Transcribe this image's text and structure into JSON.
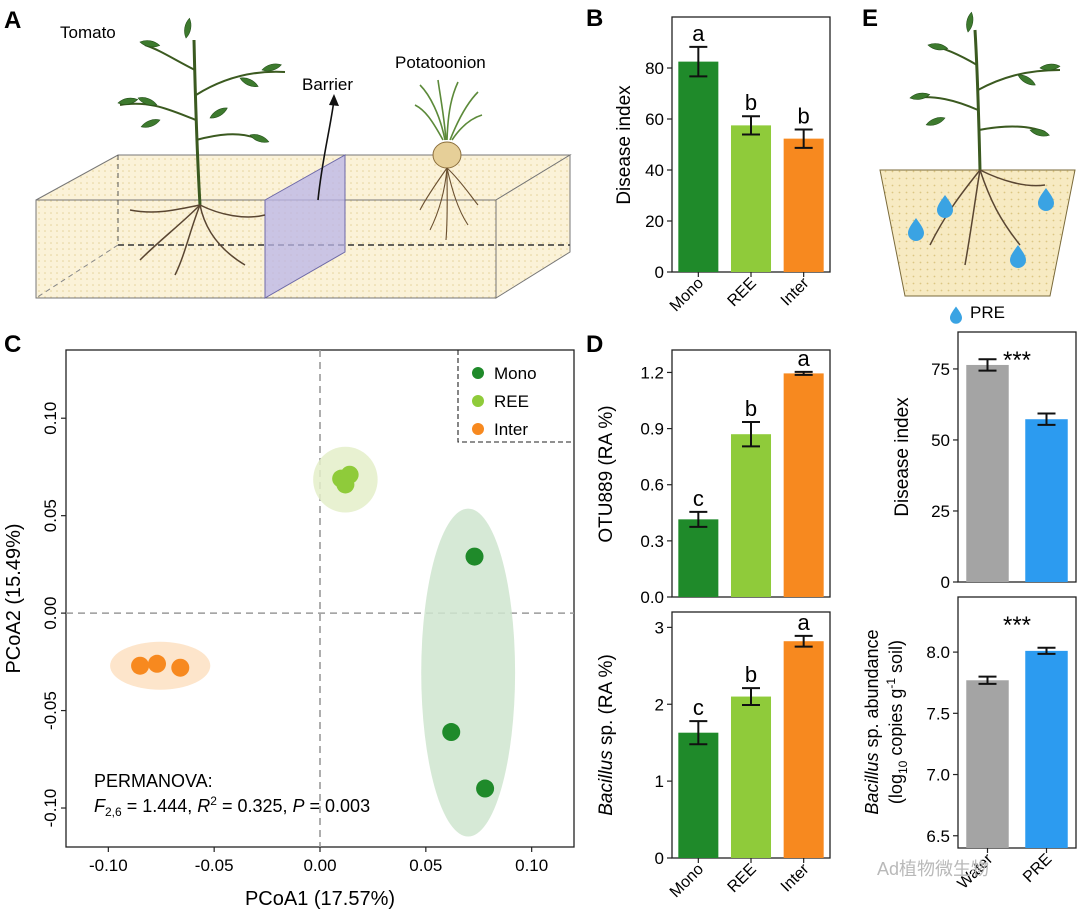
{
  "panels": {
    "A": {
      "letter": "A",
      "label_tomato": "Tomato",
      "label_barrier": "Barrier",
      "label_potatoonion": "Potatoonion"
    },
    "E": {
      "letter": "E",
      "legend_label": "PRE",
      "drop_color": "#3aa3e3"
    }
  },
  "colors": {
    "mono": "#1f8a2a",
    "ree": "#8fcb3a",
    "inter": "#f7891f",
    "water": "#a4a4a4",
    "pre": "#2c9bf0"
  },
  "watermark": "Ad植物微生物",
  "chart_data": [
    {
      "id": "B",
      "letter": "B",
      "type": "bar",
      "ylabel": "Disease index",
      "categories": [
        "Mono",
        "REE",
        "Inter"
      ],
      "values": [
        82.5,
        57.5,
        52.3
      ],
      "errors": [
        5.8,
        3.6,
        3.6
      ],
      "letters": [
        "a",
        "b",
        "b"
      ],
      "ylim": [
        0,
        100
      ],
      "yticks": [
        "0",
        "20",
        "40",
        "60",
        "80"
      ]
    },
    {
      "id": "C",
      "letter": "C",
      "type": "scatter",
      "xlabel": "PCoA1 (17.57%)",
      "ylabel": "PCoA2 (15.49%)",
      "xlim": [
        -0.12,
        0.12
      ],
      "ylim": [
        -0.12,
        0.135
      ],
      "xticks": [
        "-0.10",
        "-0.05",
        "0.00",
        "0.05",
        "0.10"
      ],
      "yticks": [
        "-0.10",
        "-0.05",
        "0.00",
        "0.05",
        "0.10"
      ],
      "legend": [
        "Mono",
        "REE",
        "Inter"
      ],
      "series": [
        {
          "name": "Mono",
          "x": [
            0.073,
            0.062,
            0.078
          ],
          "y": [
            0.029,
            -0.061,
            -0.09
          ]
        },
        {
          "name": "REE",
          "x": [
            0.01,
            0.014,
            0.012
          ],
          "y": [
            0.069,
            0.071,
            0.066
          ]
        },
        {
          "name": "Inter",
          "x": [
            -0.085,
            -0.077,
            -0.066
          ],
          "y": [
            -0.027,
            -0.026,
            -0.028
          ]
        }
      ],
      "stats_title": "PERMANOVA:",
      "stats_F_sym": "F",
      "stats_F_sub": "2,6",
      "stats_F_val": " = 1.444, ",
      "stats_R_sym": "R",
      "stats_R_sup": "2",
      "stats_R_val": " = 0.325, ",
      "stats_P_sym": "P",
      "stats_P_val": " = 0.003"
    },
    {
      "id": "D_top",
      "letter": "D",
      "type": "bar",
      "ylabel": "OTU889 (RA %)",
      "categories": [
        "Mono",
        "REE",
        "Inter"
      ],
      "values": [
        0.415,
        0.87,
        1.195
      ],
      "errors": [
        0.04,
        0.065,
        0.008
      ],
      "letters": [
        "c",
        "b",
        "a"
      ],
      "ylim": [
        0,
        1.32
      ],
      "yticks": [
        "0.0",
        "0.3",
        "0.6",
        "0.9",
        "1.2"
      ]
    },
    {
      "id": "D_bottom",
      "type": "bar",
      "ylabel_italic": "Bacillus",
      "ylabel_rest": " sp. (RA %)",
      "categories": [
        "Mono",
        "REE",
        "Inter"
      ],
      "values": [
        1.63,
        2.1,
        2.82
      ],
      "errors": [
        0.15,
        0.11,
        0.07
      ],
      "letters": [
        "c",
        "b",
        "a"
      ],
      "ylim": [
        0,
        3.2
      ],
      "yticks": [
        "0",
        "1",
        "2",
        "3"
      ]
    },
    {
      "id": "E_top",
      "type": "bar",
      "ylabel": "Disease index",
      "categories": [
        "Water",
        "PRE"
      ],
      "values": [
        76.4,
        57.3
      ],
      "errors": [
        2.0,
        2.0
      ],
      "significance": "***",
      "ylim": [
        0,
        88
      ],
      "yticks": [
        "0",
        "25",
        "50",
        "75"
      ]
    },
    {
      "id": "E_bottom",
      "type": "bar",
      "ylabel_line1_italic": "Bacillus",
      "ylabel_line1_rest": " sp. abundance",
      "ylabel_line2": "(log",
      "ylabel_line2_sub": "10",
      "ylabel_line2_rest": " copies g",
      "ylabel_line2_sup": "-1",
      "ylabel_line2_end": " soil)",
      "categories": [
        "Water",
        "PRE"
      ],
      "values": [
        7.77,
        8.01
      ],
      "errors": [
        0.03,
        0.025
      ],
      "significance": "***",
      "ylim": [
        6.4,
        8.45
      ],
      "yticks": [
        "6.5",
        "7.0",
        "7.5",
        "8.0"
      ]
    }
  ]
}
